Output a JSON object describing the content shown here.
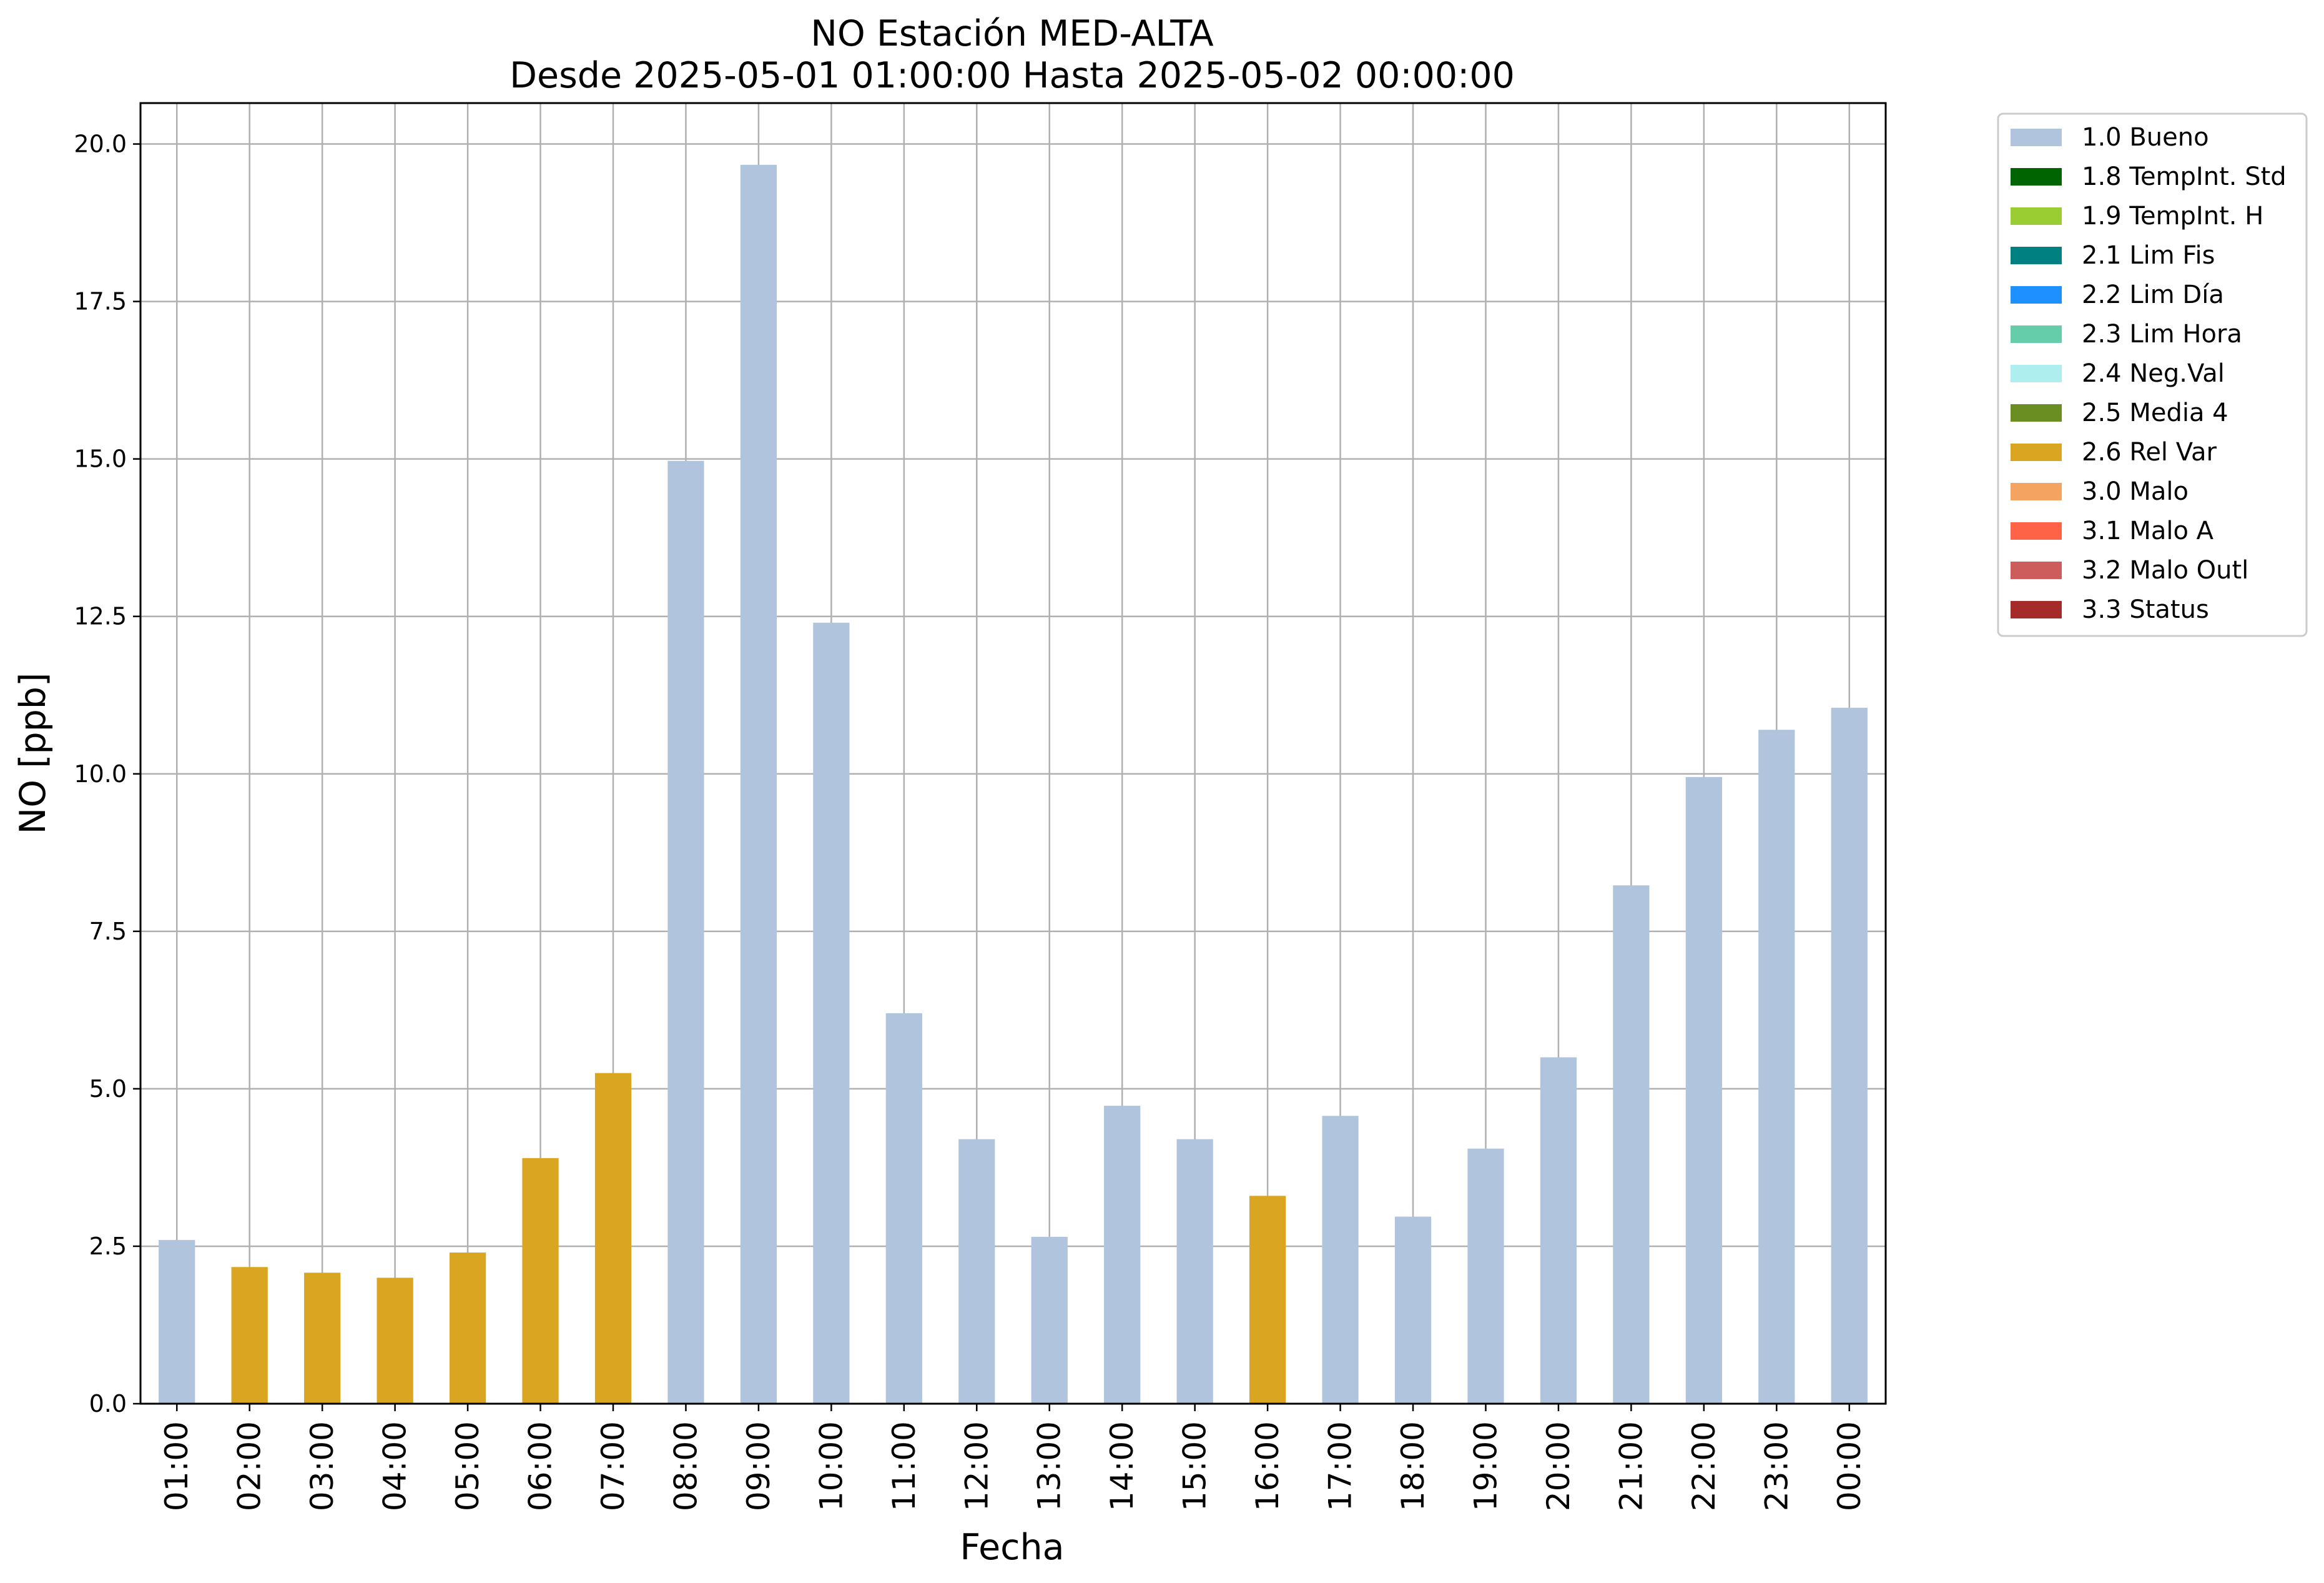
{
  "chart_data": {
    "type": "bar",
    "title": "NO Estación MED-ALTA",
    "subtitle": "Desde 2025-05-01 01:00:00 Hasta 2025-05-02 00:00:00",
    "xlabel": "Fecha",
    "ylabel": "NO [ppb]",
    "ylim": [
      0,
      20.65
    ],
    "yticks": [
      "0.0",
      "2.5",
      "5.0",
      "7.5",
      "10.0",
      "12.5",
      "15.0",
      "17.5",
      "20.0"
    ],
    "grid": true,
    "legend_position": "outside-top-right",
    "categories": [
      "01:00",
      "02:00",
      "03:00",
      "04:00",
      "05:00",
      "06:00",
      "07:00",
      "08:00",
      "09:00",
      "10:00",
      "11:00",
      "12:00",
      "13:00",
      "14:00",
      "15:00",
      "16:00",
      "17:00",
      "18:00",
      "19:00",
      "20:00",
      "21:00",
      "22:00",
      "23:00",
      "00:00"
    ],
    "values": [
      2.6,
      2.17,
      2.08,
      2.0,
      2.4,
      3.9,
      5.25,
      14.97,
      19.67,
      12.4,
      6.2,
      4.2,
      2.65,
      4.73,
      4.2,
      3.3,
      4.57,
      2.97,
      4.05,
      5.5,
      8.23,
      9.95,
      10.7,
      11.05
    ],
    "flags": [
      "1.0 Bueno",
      "2.6 Rel Var",
      "2.6 Rel Var",
      "2.6 Rel Var",
      "2.6 Rel Var",
      "2.6 Rel Var",
      "2.6 Rel Var",
      "1.0 Bueno",
      "1.0 Bueno",
      "1.0 Bueno",
      "1.0 Bueno",
      "1.0 Bueno",
      "1.0 Bueno",
      "1.0 Bueno",
      "1.0 Bueno",
      "2.6 Rel Var",
      "1.0 Bueno",
      "1.0 Bueno",
      "1.0 Bueno",
      "1.0 Bueno",
      "1.0 Bueno",
      "1.0 Bueno",
      "1.0 Bueno",
      "1.0 Bueno"
    ],
    "legend": [
      {
        "label": "1.0 Bueno",
        "color": "#b0c4de"
      },
      {
        "label": "1.8 TempInt. Std",
        "color": "#006400"
      },
      {
        "label": "1.9 TempInt. H",
        "color": "#9acd32"
      },
      {
        "label": "2.1 Lim Fis",
        "color": "#008080"
      },
      {
        "label": "2.2 Lim Día",
        "color": "#1e90ff"
      },
      {
        "label": "2.3 Lim Hora",
        "color": "#66cdaa"
      },
      {
        "label": "2.4 Neg.Val",
        "color": "#afeeee"
      },
      {
        "label": "2.5 Media 4",
        "color": "#6b8e23"
      },
      {
        "label": "2.6 Rel Var",
        "color": "#daa520"
      },
      {
        "label": "3.0 Malo",
        "color": "#f4a460"
      },
      {
        "label": "3.1 Malo A",
        "color": "#ff6347"
      },
      {
        "label": "3.2 Malo Outl",
        "color": "#cd5c5c"
      },
      {
        "label": "3.3 Status",
        "color": "#a52a2a"
      }
    ]
  }
}
